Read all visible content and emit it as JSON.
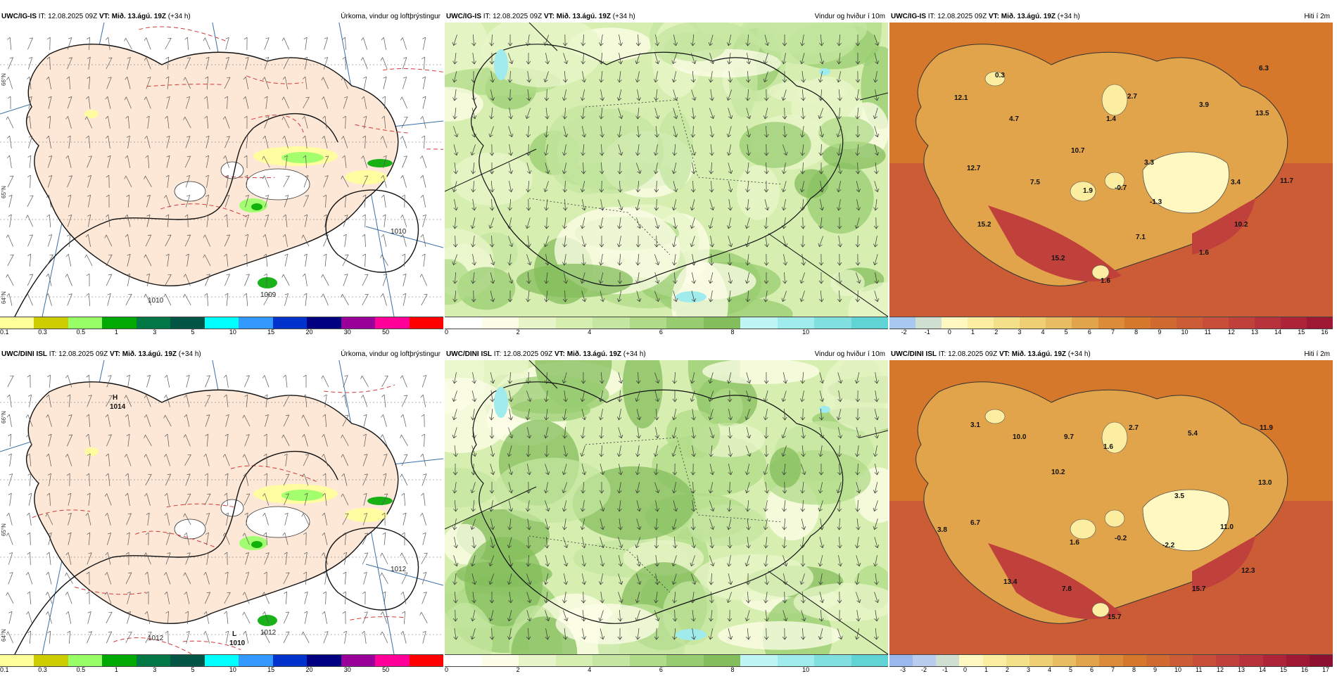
{
  "panels": [
    {
      "model": "UWC/IG-IS",
      "it_label": "IT:",
      "it_value": "12.08.2025 09Z",
      "vt_label": "VT:",
      "vt_value": "Mið. 13.ágú. 19Z",
      "lead": "(+34 h)",
      "title": "Úrkoma, vindur og loftþrýstingur",
      "legend": {
        "colors": [
          "#ffff99",
          "#cccc00",
          "#99ff66",
          "#00aa00",
          "#007744",
          "#005544",
          "#00ffff",
          "#3399ff",
          "#0033cc",
          "#000080",
          "#990099",
          "#ff0099",
          "#ff0000"
        ],
        "ticks": [
          "0.1",
          "0.3",
          "0.5",
          "1",
          "3",
          "5",
          "10",
          "15",
          "20",
          "30",
          "50"
        ]
      },
      "isobar_labels": [
        "1010",
        "1010",
        "1009"
      ],
      "edge_labels": [
        "66°N",
        "65°N",
        "64°N"
      ]
    },
    {
      "model": "UWC/IG-IS",
      "it_label": "IT:",
      "it_value": "12.08.2025 09Z",
      "vt_label": "VT:",
      "vt_value": "Mið. 13.ágú. 19Z",
      "lead": "(+34 h)",
      "title": "Vindur og hviður í 10m",
      "legend": {
        "colors": [
          "#ffffff",
          "#fdfde8",
          "#e8f5c8",
          "#d6eeb0",
          "#c4e6a0",
          "#b0db88",
          "#98cc70",
          "#84bd5c",
          "#c0f5f5",
          "#a0ecec",
          "#80e0e0",
          "#60d4d4"
        ],
        "ticks": [
          "0",
          "2",
          "4",
          "6",
          "8",
          "10"
        ]
      }
    },
    {
      "model": "UWC/IG-IS",
      "it_label": "IT:",
      "it_value": "12.08.2025 09Z",
      "vt_label": "VT:",
      "vt_value": "Mið. 13.ágú. 19Z",
      "lead": "(+34 h)",
      "title": "Hiti í 2m",
      "legend": {
        "colors": [
          "#a8c8f0",
          "#d0e0d0",
          "#fff8c0",
          "#fbeea0",
          "#f5e08a",
          "#efcf74",
          "#e8bc60",
          "#e2a44a",
          "#dc8c38",
          "#d6782c",
          "#d06a30",
          "#cc5c36",
          "#c84e3a",
          "#c0403c",
          "#b8323c",
          "#ad2438",
          "#9e1834"
        ],
        "ticks": [
          "-2",
          "-1",
          "0",
          "1",
          "2",
          "3",
          "4",
          "5",
          "6",
          "7",
          "8",
          "9",
          "10",
          "11",
          "12",
          "13",
          "14",
          "15",
          "16"
        ]
      },
      "map_values": [
        "0.3",
        "12.1",
        "4.7",
        "2.7",
        "1.4",
        "6.3",
        "3.9",
        "13.5",
        "10.7",
        "12.7",
        "7.5",
        "1.9",
        "-0.7",
        "3.3",
        "-1.3",
        "3.4",
        "11.7",
        "15.2",
        "7.1",
        "10.2",
        "1.6",
        "15.2",
        "1.6"
      ]
    },
    {
      "model": "UWC/DINI ISL",
      "it_label": "IT:",
      "it_value": "12.08.2025 09Z",
      "vt_label": "VT:",
      "vt_value": "Mið. 13.ágú. 19Z",
      "lead": "(+34 h)",
      "title": "Úrkoma, vindur og loftþrýstingur",
      "legend": {
        "colors": [
          "#ffff99",
          "#cccc00",
          "#99ff66",
          "#00aa00",
          "#007744",
          "#005544",
          "#00ffff",
          "#3399ff",
          "#0033cc",
          "#000080",
          "#990099",
          "#ff0099",
          "#ff0000"
        ],
        "ticks": [
          "0.1",
          "0.3",
          "0.5",
          "1",
          "3",
          "5",
          "10",
          "15",
          "20",
          "30",
          "50"
        ]
      },
      "pressure_centers": [
        {
          "symbol": "H",
          "value": "1014"
        },
        {
          "symbol": "L",
          "value": "1010"
        }
      ],
      "isobar_labels": [
        "1012",
        "1012",
        "1012"
      ],
      "edge_labels": [
        "66°N",
        "65°N",
        "64°N"
      ]
    },
    {
      "model": "UWC/DINI ISL",
      "it_label": "IT:",
      "it_value": "12.08.2025 09Z",
      "vt_label": "VT:",
      "vt_value": "Mið. 13.ágú. 19Z",
      "lead": "(+34 h)",
      "title": "Vindur og hviður í 10m",
      "legend": {
        "colors": [
          "#ffffff",
          "#fdfde8",
          "#e8f5c8",
          "#d6eeb0",
          "#c4e6a0",
          "#b0db88",
          "#98cc70",
          "#84bd5c",
          "#c0f5f5",
          "#a0ecec",
          "#80e0e0",
          "#60d4d4"
        ],
        "ticks": [
          "0",
          "2",
          "4",
          "6",
          "8",
          "10"
        ]
      }
    },
    {
      "model": "UWC/DINI ISL",
      "it_label": "IT:",
      "it_value": "12.08.2025 09Z",
      "vt_label": "VT:",
      "vt_value": "Mið. 13.ágú. 19Z",
      "lead": "(+34 h)",
      "title": "Hiti í 2m",
      "legend": {
        "colors": [
          "#9ab8ec",
          "#b8ccee",
          "#d0e0d0",
          "#fff8c0",
          "#fbeea0",
          "#f5e08a",
          "#efcf74",
          "#e8bc60",
          "#e2a44a",
          "#dc8c38",
          "#d6782c",
          "#d06a30",
          "#cc5c36",
          "#c84e3a",
          "#c0403c",
          "#b8323c",
          "#ad2438",
          "#9e1834",
          "#8c1030"
        ],
        "ticks": [
          "-3",
          "-2",
          "-1",
          "0",
          "1",
          "2",
          "3",
          "4",
          "5",
          "6",
          "7",
          "8",
          "9",
          "10",
          "11",
          "12",
          "13",
          "14",
          "15",
          "16",
          "17"
        ]
      },
      "map_values": [
        "3.1",
        "10.0",
        "9.7",
        "1.6",
        "2.7",
        "5.4",
        "11.9",
        "10.2",
        "13.0",
        "3.5",
        "3.8",
        "6.7",
        "1.6",
        "-0.2",
        "-2.2",
        "11.0",
        "12.3",
        "13.4",
        "7.8",
        "15.7",
        "15.7"
      ]
    }
  ]
}
